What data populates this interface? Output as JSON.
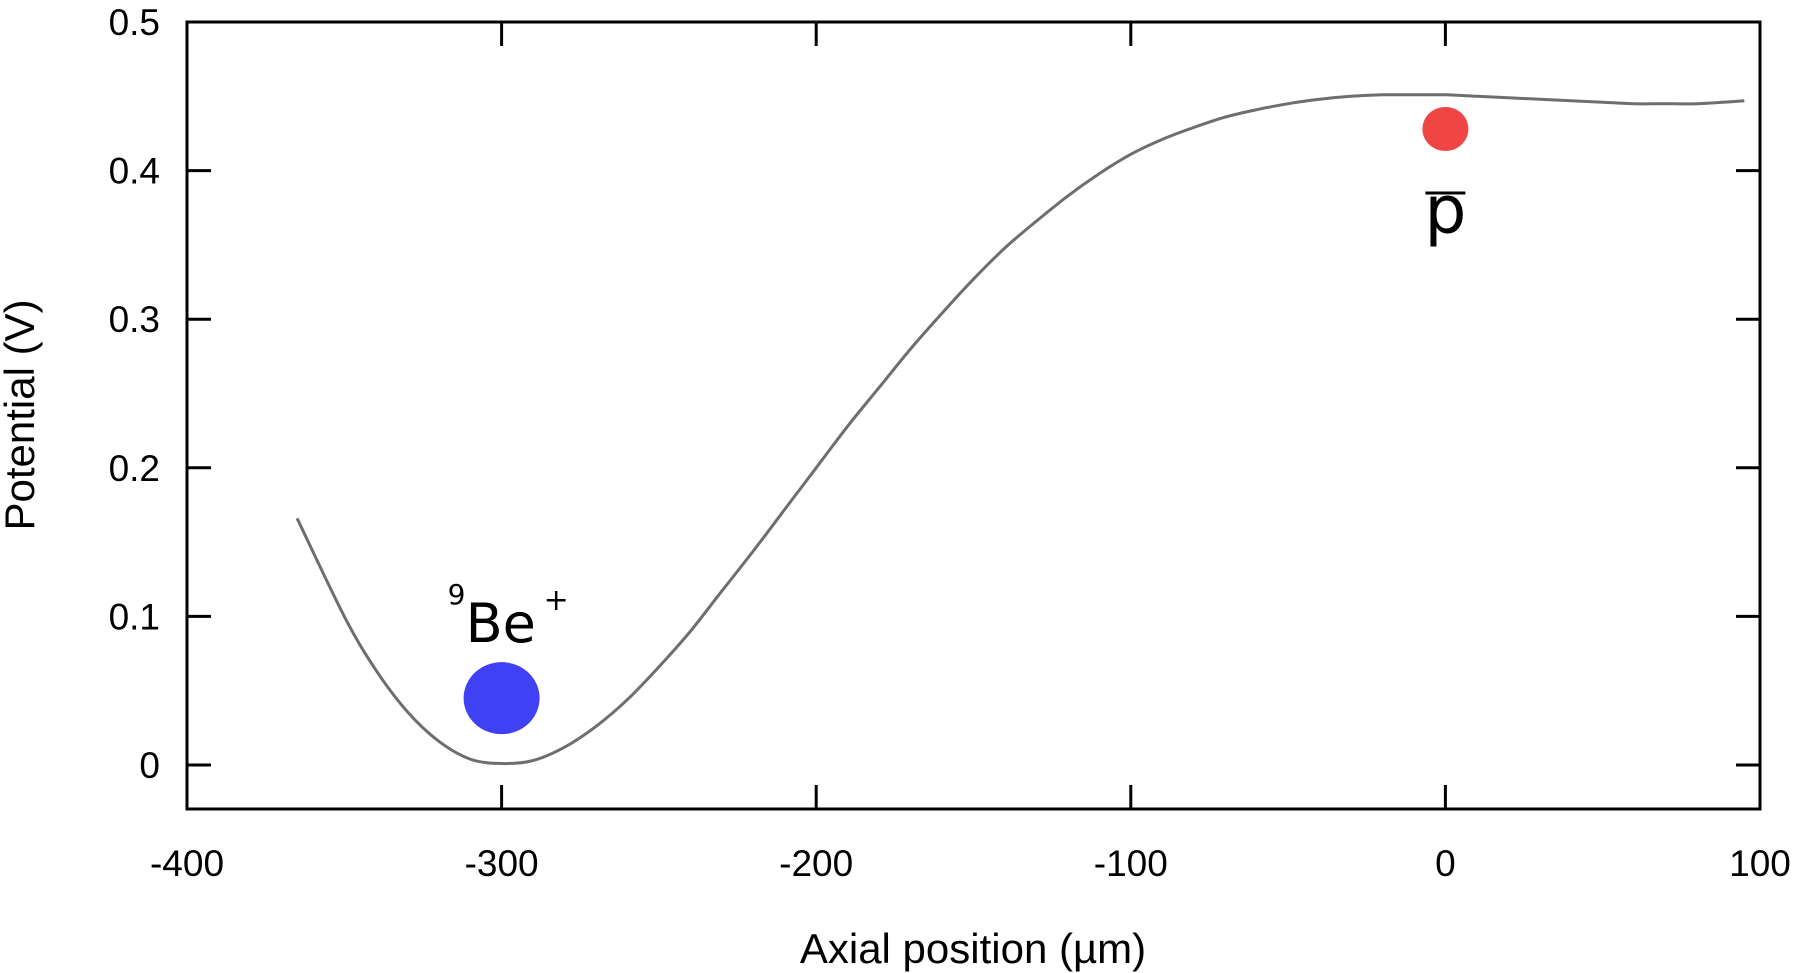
{
  "chart_data": {
    "type": "line",
    "xlabel": "Axial position (µm)",
    "ylabel": "Potential (V)",
    "xlim": [
      -400,
      100
    ],
    "ylim": [
      -0.03,
      0.5
    ],
    "xticks": [
      -400,
      -300,
      -200,
      -100,
      0,
      100
    ],
    "yticks": [
      0,
      0.1,
      0.2,
      0.3,
      0.4,
      0.5
    ],
    "x_tick_labels": [
      "-400",
      "-300",
      "-200",
      "-100",
      "0",
      "100"
    ],
    "y_tick_labels": [
      "0",
      "0.1",
      "0.2",
      "0.3",
      "0.4",
      "0.5"
    ],
    "grid": false,
    "line_color": "#6e6e6e",
    "series": [
      {
        "x": [
          -365,
          -350,
          -340,
          -330,
          -320,
          -310,
          -300,
          -290,
          -280,
          -270,
          -260,
          -250,
          -240,
          -230,
          -220,
          -210,
          -200,
          -190,
          -180,
          -170,
          -160,
          -150,
          -140,
          -130,
          -120,
          -110,
          -100,
          -90,
          -80,
          -70,
          -60,
          -50,
          -40,
          -30,
          -20,
          -10,
          0,
          10,
          20,
          30,
          40,
          50,
          60,
          70,
          80,
          95
        ],
        "y": [
          0.166,
          0.1,
          0.064,
          0.036,
          0.016,
          0.004,
          0.001,
          0.003,
          0.012,
          0.026,
          0.044,
          0.066,
          0.09,
          0.117,
          0.144,
          0.172,
          0.2,
          0.228,
          0.254,
          0.28,
          0.304,
          0.327,
          0.348,
          0.366,
          0.383,
          0.398,
          0.411,
          0.421,
          0.429,
          0.436,
          0.441,
          0.445,
          0.448,
          0.45,
          0.451,
          0.451,
          0.451,
          0.45,
          0.449,
          0.448,
          0.447,
          0.446,
          0.445,
          0.445,
          0.445,
          0.447
        ]
      }
    ],
    "annotations": [
      {
        "sup": "9",
        "main": "Be",
        "sup_after": "+",
        "x": -300,
        "y": 0.045,
        "color": "#4040f5",
        "size": "large"
      },
      {
        "main": "p",
        "overline": true,
        "x": 0,
        "y": 0.428,
        "color": "#f04545",
        "size": "small"
      }
    ]
  }
}
